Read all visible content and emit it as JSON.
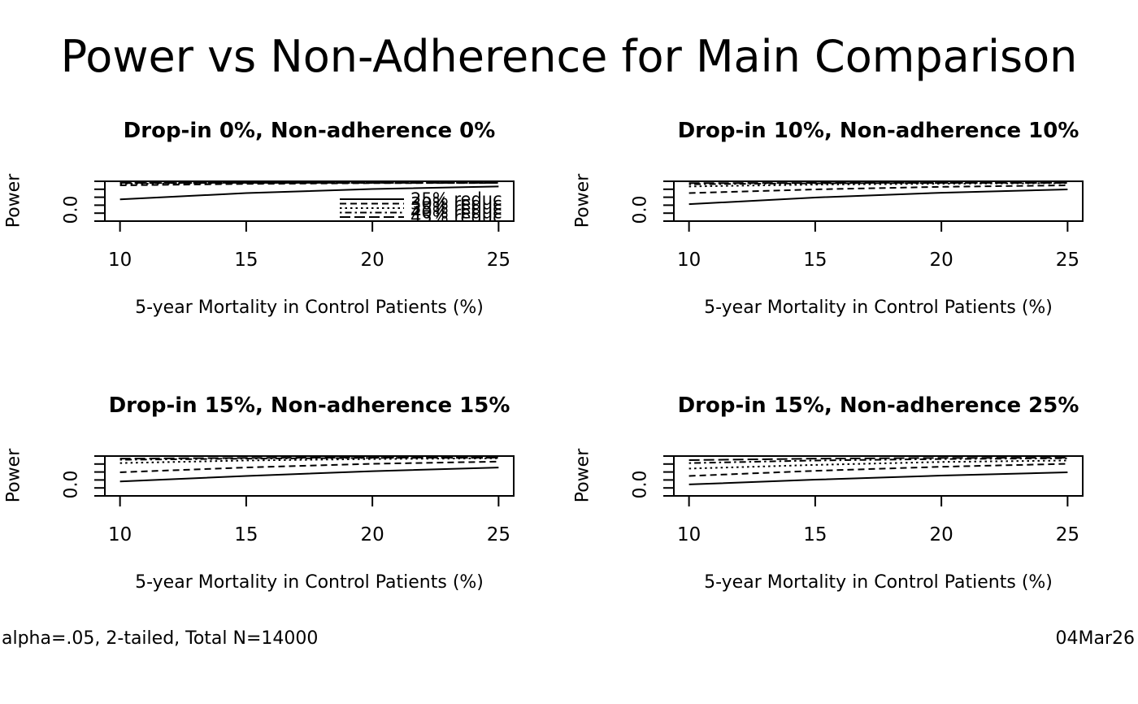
{
  "main_title": "Power vs Non-Adherence for Main Comparison",
  "footer": {
    "note": "alpha=.05, 2-tailed, Total N=14000",
    "date": "04Mar26"
  },
  "axes": {
    "ylab": "Power",
    "ytick_label": "0.0",
    "xlab": "5-year Mortality in Control Patients (%)"
  },
  "legend": {
    "entries": [
      "25% reduc",
      "30% reduc",
      "35% reduc",
      "40% reduc",
      "45% reduc"
    ],
    "position": "bottomright-overlapping-clipped"
  },
  "colors": {
    "foreground": "#000000",
    "background": "#ffffff"
  },
  "panels": [
    {
      "title": "Drop-in 0%, Non-adherence 0%"
    },
    {
      "title": "Drop-in 10%, Non-adherence 10%"
    },
    {
      "title": "Drop-in 15%, Non-adherence 15%"
    },
    {
      "title": "Drop-in 15%, Non-adherence 25%"
    }
  ],
  "chart_data": [
    {
      "type": "line",
      "panel_title": "Drop-in 0%, Non-adherence 0%",
      "x": [
        10,
        15,
        20,
        25
      ],
      "xticks": [
        "10",
        "15",
        "20",
        "25"
      ],
      "xlim": [
        9.4,
        25.6
      ],
      "ylim": [
        -0.04,
        1.04
      ],
      "xlabel": "5-year Mortality in Control Patients (%)",
      "ylabel": "Power",
      "grid": false,
      "legend_shown": true,
      "series": [
        {
          "name": "25% reduc",
          "lty": "solid",
          "values": [
            0.55,
            0.72,
            0.83,
            0.9
          ]
        },
        {
          "name": "30% reduc",
          "lty": "dashed",
          "values": [
            0.93,
            0.97,
            0.99,
            0.995
          ]
        },
        {
          "name": "35% reduc",
          "lty": "dotted",
          "values": [
            0.97,
            0.99,
            1.0,
            1.0
          ]
        },
        {
          "name": "40% reduc",
          "lty": "dotdash",
          "values": [
            0.99,
            1.0,
            1.0,
            1.0
          ]
        },
        {
          "name": "45% reduc",
          "lty": "longdash",
          "values": [
            1.0,
            1.0,
            1.0,
            1.0
          ]
        }
      ]
    },
    {
      "type": "line",
      "panel_title": "Drop-in 10%, Non-adherence 10%",
      "x": [
        10,
        15,
        20,
        25
      ],
      "xticks": [
        "10",
        "15",
        "20",
        "25"
      ],
      "xlim": [
        9.4,
        25.6
      ],
      "ylim": [
        -0.04,
        1.04
      ],
      "xlabel": "5-year Mortality in Control Patients (%)",
      "ylabel": "Power",
      "grid": false,
      "legend_shown": false,
      "series": [
        {
          "name": "25% reduc",
          "lty": "solid",
          "values": [
            0.42,
            0.6,
            0.73,
            0.82
          ]
        },
        {
          "name": "30% reduc",
          "lty": "dashed",
          "values": [
            0.72,
            0.82,
            0.89,
            0.93
          ]
        },
        {
          "name": "35% reduc",
          "lty": "dotted",
          "values": [
            0.9,
            0.95,
            0.975,
            0.99
          ]
        },
        {
          "name": "40% reduc",
          "lty": "dotdash",
          "values": [
            0.96,
            0.985,
            0.995,
            1.0
          ]
        },
        {
          "name": "45% reduc",
          "lty": "longdash",
          "values": [
            0.99,
            0.995,
            1.0,
            1.0
          ]
        }
      ]
    },
    {
      "type": "line",
      "panel_title": "Drop-in 15%, Non-adherence 15%",
      "x": [
        10,
        15,
        20,
        25
      ],
      "xticks": [
        "10",
        "15",
        "20",
        "25"
      ],
      "xlim": [
        9.4,
        25.6
      ],
      "ylim": [
        -0.04,
        1.04
      ],
      "xlabel": "5-year Mortality in Control Patients (%)",
      "ylabel": "Power",
      "grid": false,
      "legend_shown": false,
      "series": [
        {
          "name": "25% reduc",
          "lty": "solid",
          "values": [
            0.35,
            0.5,
            0.63,
            0.73
          ]
        },
        {
          "name": "30% reduc",
          "lty": "dashed",
          "values": [
            0.6,
            0.73,
            0.83,
            0.89
          ]
        },
        {
          "name": "35% reduc",
          "lty": "dotted",
          "values": [
            0.85,
            0.92,
            0.96,
            0.98
          ]
        },
        {
          "name": "40% reduc",
          "lty": "dotdash",
          "values": [
            0.94,
            0.97,
            0.99,
            0.995
          ]
        },
        {
          "name": "45% reduc",
          "lty": "longdash",
          "values": [
            0.97,
            0.99,
            1.0,
            1.0
          ]
        }
      ]
    },
    {
      "type": "line",
      "panel_title": "Drop-in 15%, Non-adherence 25%",
      "x": [
        10,
        15,
        20,
        25
      ],
      "xticks": [
        "10",
        "15",
        "20",
        "25"
      ],
      "xlim": [
        9.4,
        25.6
      ],
      "ylim": [
        -0.04,
        1.04
      ],
      "xlabel": "5-year Mortality in Control Patients (%)",
      "ylabel": "Power",
      "grid": false,
      "legend_shown": false,
      "series": [
        {
          "name": "25% reduc",
          "lty": "solid",
          "values": [
            0.27,
            0.4,
            0.51,
            0.6
          ]
        },
        {
          "name": "30% reduc",
          "lty": "dashed",
          "values": [
            0.5,
            0.64,
            0.75,
            0.83
          ]
        },
        {
          "name": "35% reduc",
          "lty": "dotted",
          "values": [
            0.7,
            0.8,
            0.88,
            0.92
          ]
        },
        {
          "name": "40% reduc",
          "lty": "dotdash",
          "values": [
            0.85,
            0.92,
            0.96,
            0.98
          ]
        },
        {
          "name": "45% reduc",
          "lty": "longdash",
          "values": [
            0.93,
            0.97,
            0.99,
            0.995
          ]
        }
      ]
    }
  ]
}
